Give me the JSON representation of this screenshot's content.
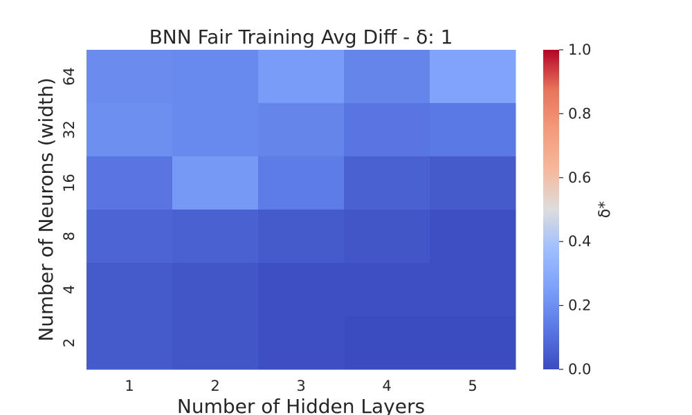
{
  "chart_data": {
    "type": "heatmap",
    "title": "BNN Fair Training Avg Diff - δ: 1",
    "xlabel": "Number of Hidden Layers",
    "ylabel": "Number of Neurons (width)",
    "x_categories": [
      "1",
      "2",
      "3",
      "4",
      "5"
    ],
    "y_categories": [
      "64",
      "32",
      "16",
      "8",
      "4",
      "2"
    ],
    "values": [
      [
        0.19,
        0.18,
        0.24,
        0.17,
        0.27
      ],
      [
        0.2,
        0.18,
        0.17,
        0.12,
        0.13
      ],
      [
        0.12,
        0.23,
        0.14,
        0.06,
        0.04
      ],
      [
        0.07,
        0.06,
        0.04,
        0.03,
        0.01
      ],
      [
        0.04,
        0.03,
        0.01,
        0.01,
        0.01
      ],
      [
        0.04,
        0.03,
        0.01,
        0.0,
        0.0
      ]
    ],
    "colorbar": {
      "label": "δ*",
      "range": [
        0.0,
        1.0
      ],
      "ticks": [
        "0.0",
        "0.2",
        "0.4",
        "0.6",
        "0.8",
        "1.0"
      ],
      "colormap": "coolwarm"
    },
    "colors": {
      "low": "#3b4cc0",
      "mid": "#dddddd",
      "high": "#b40426"
    },
    "grid": false,
    "legend": "right"
  }
}
